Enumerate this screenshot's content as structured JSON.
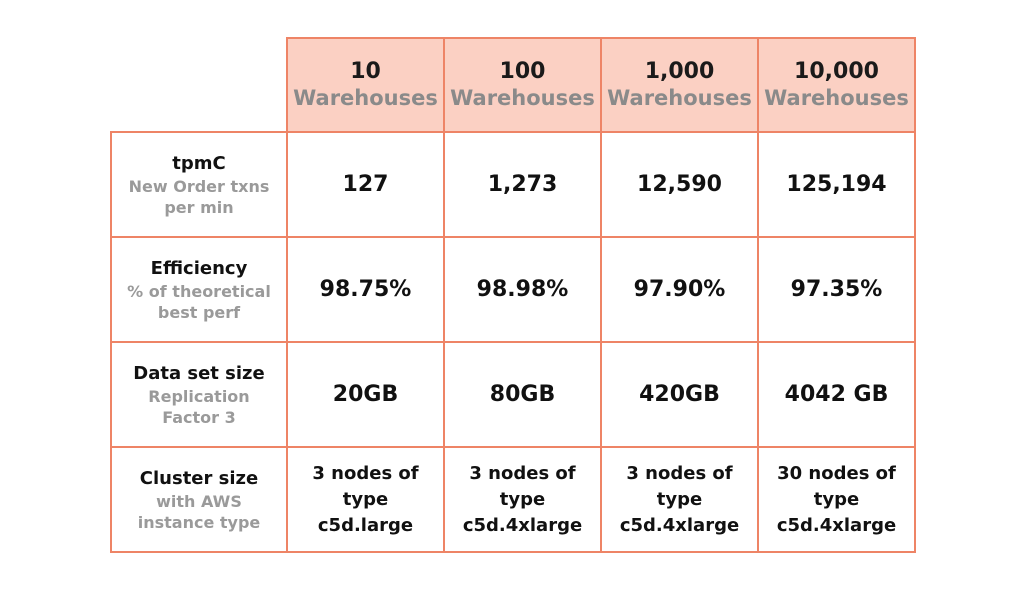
{
  "columns": [
    {
      "number": "10",
      "unit": "Warehouses"
    },
    {
      "number": "100",
      "unit": "Warehouses"
    },
    {
      "number": "1,000",
      "unit": "Warehouses"
    },
    {
      "number": "10,000",
      "unit": "Warehouses"
    }
  ],
  "rows": [
    {
      "title": "tpmC",
      "subtitle_lines": [
        "New Order txns",
        "per min"
      ],
      "values": [
        "127",
        "1,273",
        "12,590",
        "125,194"
      ]
    },
    {
      "title": "Efficiency",
      "subtitle_lines": [
        "% of theoretical",
        "best perf"
      ],
      "values": [
        "98.75%",
        "98.98%",
        "97.90%",
        "97.35%"
      ]
    },
    {
      "title": "Data set size",
      "subtitle_lines": [
        "Replication",
        "Factor 3"
      ],
      "values": [
        "20GB",
        "80GB",
        "420GB",
        "4042 GB"
      ]
    },
    {
      "title": "Cluster size",
      "subtitle_lines": [
        "with AWS",
        "instance type"
      ],
      "values": [
        [
          "3 nodes of",
          "type",
          "c5d.large"
        ],
        [
          "3 nodes of",
          "type",
          "c5d.4xlarge"
        ],
        [
          "3 nodes of",
          "type",
          "c5d.4xlarge"
        ],
        [
          "30 nodes of",
          "type",
          "c5d.4xlarge"
        ]
      ]
    }
  ],
  "colors": {
    "border": "#ee8466",
    "header_fill": "#fbd0c3",
    "subtitle_gray": "#9a9a9a"
  }
}
